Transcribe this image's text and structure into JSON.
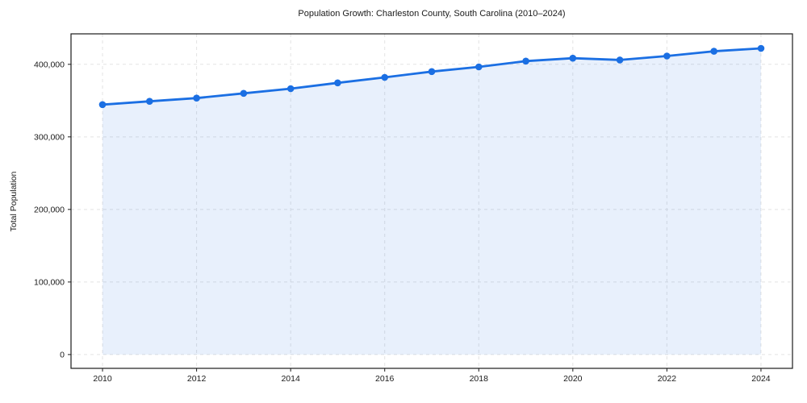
{
  "title": "Population Growth: Charleston County, South Carolina (2010–2024)",
  "chart_data": {
    "type": "area",
    "title": "Population Growth: Charleston County, South Carolina (2010–2024)",
    "xlabel": "",
    "ylabel": "Total Population",
    "x": [
      2010,
      2011,
      2012,
      2013,
      2014,
      2015,
      2016,
      2017,
      2018,
      2019,
      2020,
      2021,
      2022,
      2023,
      2024
    ],
    "series": [
      {
        "name": "Total Population",
        "values": [
          344500,
          349000,
          353500,
          360000,
          366500,
          374500,
          382000,
          390000,
          396500,
          404500,
          408500,
          406000,
          411500,
          418000,
          422000
        ]
      }
    ],
    "xticks": [
      2010,
      2012,
      2014,
      2016,
      2018,
      2020,
      2022,
      2024
    ],
    "yticks": [
      0,
      100000,
      200000,
      300000,
      400000
    ],
    "ytick_labels": [
      "0",
      "100,000",
      "200,000",
      "300,000",
      "400,000"
    ],
    "xlim": [
      2009.33,
      2024.67
    ],
    "ylim": [
      -19000,
      442000
    ],
    "grid": true,
    "grid_style": "dashed",
    "legend": "none",
    "marker": "circle",
    "colors": {
      "line": "#1b6fe3",
      "marker": "#1b6fe3",
      "fill": "rgba(27,111,227,0.10)",
      "grid": "#e3e3e3",
      "axis": "#1a1a1a",
      "background": "#ffffff"
    }
  }
}
